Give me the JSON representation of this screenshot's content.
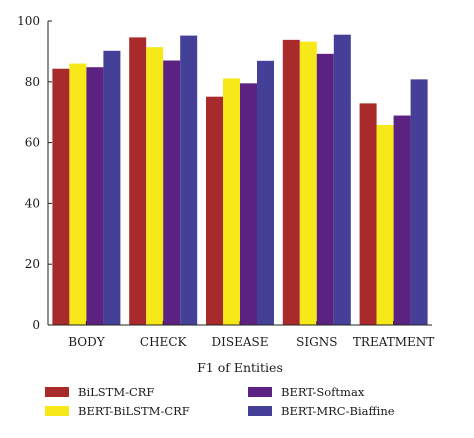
{
  "chart_data": {
    "type": "bar",
    "title": "",
    "xlabel": "F1 of Entities",
    "ylabel": "",
    "ylim": [
      0,
      100
    ],
    "yticks": [
      0,
      20,
      40,
      60,
      80,
      100
    ],
    "grid": false,
    "legend_position": "bottom",
    "categories": [
      "BODY",
      "CHECK",
      "DISEASE",
      "SIGNS",
      "TREATMENT"
    ],
    "series": [
      {
        "name": "BiLSTM-CRF",
        "color": "#a82a2a",
        "values": [
          84.3,
          94.6,
          75.1,
          93.8,
          72.9
        ]
      },
      {
        "name": "BERT-BiLSTM-CRF",
        "color": "#f7e81a",
        "values": [
          86.0,
          91.4,
          81.1,
          93.2,
          65.8
        ]
      },
      {
        "name": "BERT-Softmax",
        "color": "#5b2281",
        "values": [
          84.8,
          87.0,
          79.5,
          89.2,
          68.9
        ]
      },
      {
        "name": "BERT-MRC-Biaffine",
        "color": "#443f97",
        "values": [
          90.2,
          95.2,
          86.9,
          95.5,
          80.8
        ]
      }
    ]
  }
}
